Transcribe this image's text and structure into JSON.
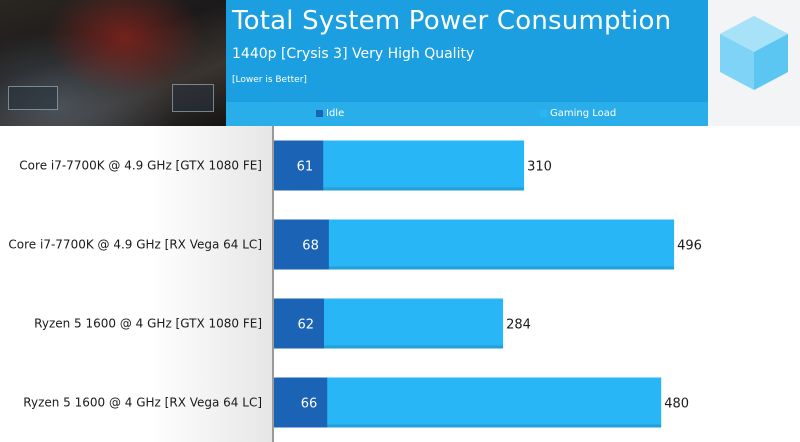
{
  "header": {
    "title": "Total System Power Consumption",
    "subtitle": "1440p [Crysis 3] Very High Quality",
    "note": "[Lower is Better]"
  },
  "colors": {
    "header_bg": "#29aeea",
    "idle": "#1b63b5",
    "gaming_load": "#29b6f6",
    "logo": "#74d0f5"
  },
  "chart_data": {
    "type": "bar",
    "orientation": "horizontal",
    "title": "Total System Power Consumption",
    "subtitle": "1440p [Crysis 3] Very High Quality",
    "categories": [
      "Core i7-7700K @ 4.9 GHz [GTX 1080 FE]",
      "Core i7-7700K @ 4.9 GHz [RX Vega 64 LC]",
      "Ryzen 5  1600 @ 4 GHz [GTX 1080 FE]",
      "Ryzen 5  1600 @ 4 GHz  [RX Vega 64 LC]"
    ],
    "series": [
      {
        "name": "Idle",
        "values": [
          61,
          68,
          62,
          66
        ],
        "color": "#1b63b5"
      },
      {
        "name": "Gaming Load",
        "values": [
          310,
          496,
          284,
          480
        ],
        "color": "#29b6f6"
      }
    ],
    "xlim": [
      0,
      600
    ],
    "grid": false,
    "legend": "top",
    "overlay": true
  }
}
